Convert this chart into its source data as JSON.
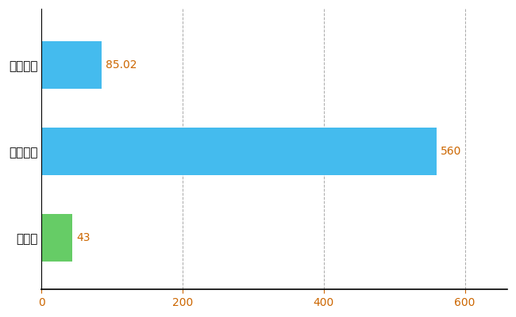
{
  "categories": [
    "三重県",
    "全国最大",
    "全国平均"
  ],
  "values": [
    43,
    560,
    85.02
  ],
  "bar_colors": [
    "#66cc66",
    "#44bbee",
    "#44bbee"
  ],
  "bar_labels": [
    "43",
    "560",
    "85.02"
  ],
  "label_color": "#cc6600",
  "xlim": [
    0,
    660
  ],
  "xticks": [
    0,
    200,
    400,
    600
  ],
  "xtick_color": "#cc6600",
  "background_color": "#ffffff",
  "grid_color": "#aaaaaa",
  "bar_height": 0.55,
  "figsize": [
    6.5,
    4.0
  ],
  "dpi": 100,
  "label_fontsize": 10,
  "tick_fontsize": 10
}
